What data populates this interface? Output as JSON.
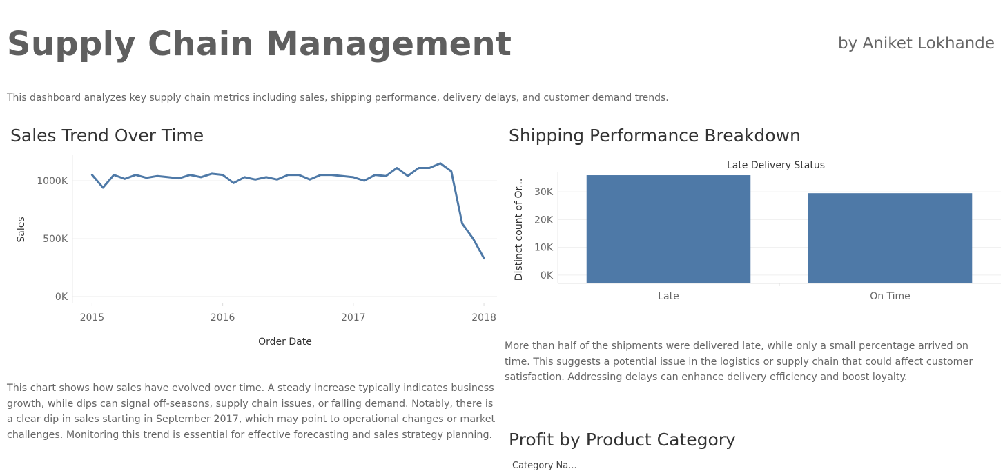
{
  "header": {
    "title": "Supply Chain Management",
    "author": "by Aniket Lokhande",
    "intro": "This dashboard analyzes key supply chain metrics including sales, shipping performance, delivery delays, and customer demand trends."
  },
  "sales_section": {
    "title": "Sales Trend Over Time",
    "description": "This chart shows how sales have evolved over time. A steady increase typically indicates business growth, while dips can signal off-seasons, supply chain issues, or falling demand. Notably, there is a clear dip in sales starting in September 2017, which may point to operational changes or market challenges. Monitoring this trend is essential for effective forecasting and sales strategy planning."
  },
  "shipping_section": {
    "title": "Shipping Performance Breakdown",
    "description": "More than half of the shipments were delivered late, while only a small percentage arrived on time. This suggests a potential issue in the logistics or supply chain that could affect customer satisfaction. Addressing delays can enhance delivery efficiency and boost loyalty."
  },
  "profit_section": {
    "title": "Profit by Product Category",
    "header_stub": "Category Na..."
  },
  "colors": {
    "series": "#4e79a7",
    "grid": "#efefef",
    "axis_text": "#666666"
  },
  "chart_data": [
    {
      "type": "line",
      "xlabel": "Order Date",
      "ylabel": "Sales",
      "x_ticks": [
        "2015",
        "2016",
        "2017",
        "2018"
      ],
      "y_ticks": [
        "1000K",
        "500K",
        "0K"
      ],
      "y_tick_values": [
        1000000,
        500000,
        0
      ],
      "ylim": [
        -60000,
        1220000
      ],
      "xlim": [
        2014.85,
        2018.1
      ],
      "grid": true,
      "series": [
        {
          "x": [
            "2015-01",
            "2015-02",
            "2015-03",
            "2015-04",
            "2015-05",
            "2015-06",
            "2015-07",
            "2015-08",
            "2015-09",
            "2015-10",
            "2015-11",
            "2015-12",
            "2016-01",
            "2016-02",
            "2016-03",
            "2016-04",
            "2016-05",
            "2016-06",
            "2016-07",
            "2016-08",
            "2016-09",
            "2016-10",
            "2016-11",
            "2016-12",
            "2017-01",
            "2017-02",
            "2017-03",
            "2017-04",
            "2017-05",
            "2017-06",
            "2017-07",
            "2017-08",
            "2017-09",
            "2017-10",
            "2017-11",
            "2017-12",
            "2018-01"
          ],
          "values": [
            1050000,
            940000,
            1050000,
            1015000,
            1050000,
            1025000,
            1040000,
            1030000,
            1020000,
            1050000,
            1030000,
            1060000,
            1050000,
            980000,
            1030000,
            1010000,
            1030000,
            1010000,
            1050000,
            1050000,
            1010000,
            1050000,
            1050000,
            1040000,
            1030000,
            1000000,
            1050000,
            1040000,
            1110000,
            1040000,
            1110000,
            1110000,
            1150000,
            1080000,
            630000,
            500000,
            330000
          ]
        }
      ]
    },
    {
      "type": "bar",
      "title": "Late Delivery Status",
      "ylabel": "Distinct count of Or...",
      "categories": [
        "Late",
        "On Time"
      ],
      "values": [
        36000,
        29500
      ],
      "y_ticks": [
        "30K",
        "20K",
        "10K",
        "0K"
      ],
      "y_tick_values": [
        30000,
        20000,
        10000,
        0
      ],
      "ylim": [
        -3000,
        37000
      ],
      "grid": true
    }
  ]
}
